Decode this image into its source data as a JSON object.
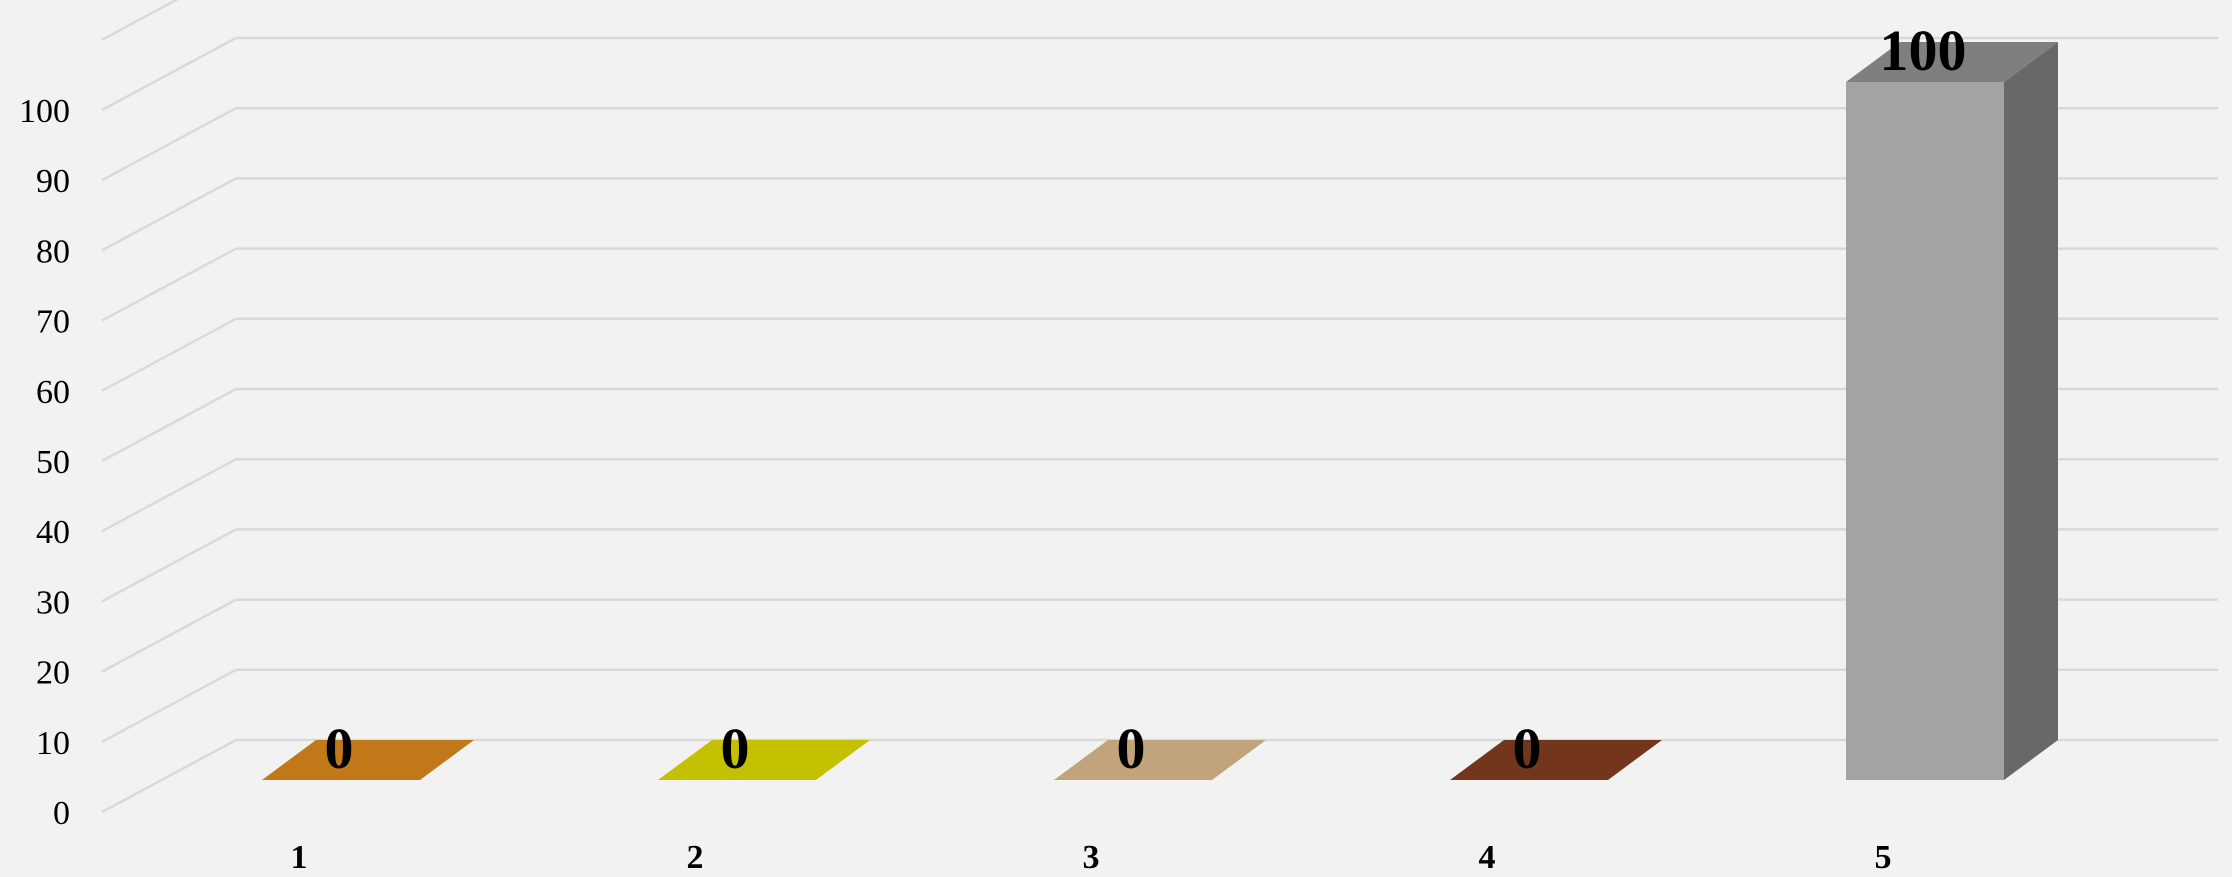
{
  "chart_data": {
    "type": "bar",
    "style": "3d-column",
    "categories": [
      "1",
      "2",
      "3",
      "4",
      "5"
    ],
    "values": [
      0,
      0,
      0,
      0,
      100
    ],
    "data_labels": [
      "0",
      "0",
      "0",
      "0",
      "100"
    ],
    "colors": [
      "#c07818",
      "#c4c200",
      "#c2a47c",
      "#73361c",
      "#a3a3a3"
    ],
    "ylim": [
      0,
      100
    ],
    "yticks": [
      "0",
      "10",
      "20",
      "30",
      "40",
      "50",
      "60",
      "70",
      "80",
      "90",
      "100"
    ],
    "grid": true,
    "legend": "none",
    "background": "#f2f2f2",
    "gridline_color": "#d9d9d9"
  }
}
